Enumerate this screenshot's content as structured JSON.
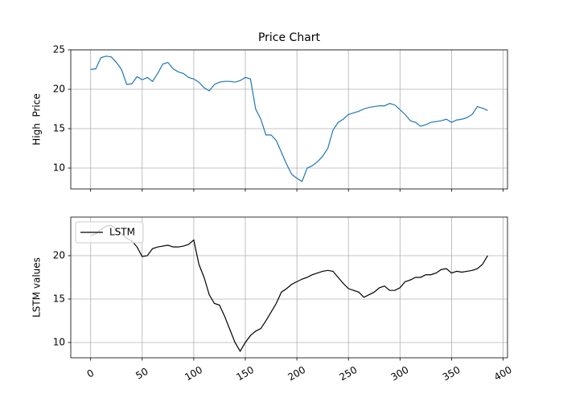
{
  "chart_data": [
    {
      "type": "line",
      "title": "Price Chart",
      "ylabel": "High  Price",
      "grid": true,
      "show_xtick_labels": false,
      "x": [
        0,
        5,
        10,
        15,
        20,
        25,
        30,
        35,
        40,
        45,
        50,
        55,
        60,
        65,
        70,
        75,
        80,
        85,
        90,
        95,
        100,
        105,
        110,
        115,
        120,
        125,
        130,
        135,
        140,
        145,
        150,
        155,
        160,
        165,
        170,
        175,
        180,
        185,
        190,
        195,
        200,
        205,
        210,
        215,
        220,
        225,
        230,
        235,
        240,
        245,
        250,
        255,
        260,
        265,
        270,
        275,
        280,
        285,
        290,
        295,
        300,
        305,
        310,
        315,
        320,
        325,
        330,
        335,
        340,
        345,
        350,
        355,
        360,
        365,
        370,
        375,
        380,
        385
      ],
      "series": [
        {
          "color": "#1f77b4",
          "values": [
            22.5,
            22.6,
            24.0,
            24.2,
            24.1,
            23.4,
            22.5,
            20.6,
            20.7,
            21.6,
            21.2,
            21.5,
            21.0,
            22.0,
            23.2,
            23.4,
            22.6,
            22.2,
            22.0,
            21.5,
            21.3,
            20.9,
            20.2,
            19.8,
            20.6,
            20.9,
            21.0,
            21.0,
            20.9,
            21.1,
            21.5,
            21.3,
            17.5,
            16.2,
            14.2,
            14.2,
            13.5,
            12.0,
            10.5,
            9.2,
            8.7,
            8.3,
            10.0,
            10.3,
            10.8,
            11.5,
            12.5,
            14.8,
            15.8,
            16.2,
            16.8,
            17.0,
            17.2,
            17.5,
            17.7,
            17.8,
            17.9,
            17.9,
            18.2,
            18.0,
            17.4,
            16.8,
            16.0,
            15.8,
            15.3,
            15.5,
            15.8,
            15.9,
            16.0,
            16.2,
            15.8,
            16.1,
            16.2,
            16.4,
            16.8,
            17.8,
            17.6,
            17.3
          ]
        }
      ],
      "xlim": [
        -19.25,
        404.25
      ],
      "xticks": [
        0,
        50,
        100,
        150,
        200,
        250,
        300,
        350,
        400
      ],
      "ylim": [
        7.35,
        25.0
      ],
      "yticks": [
        10,
        15,
        20,
        25
      ]
    },
    {
      "type": "line",
      "ylabel": "LSTM values",
      "grid": true,
      "show_xtick_labels": true,
      "legend": "upper left",
      "x": [
        0,
        5,
        10,
        15,
        20,
        25,
        30,
        35,
        40,
        45,
        50,
        55,
        60,
        65,
        70,
        75,
        80,
        85,
        90,
        95,
        100,
        105,
        110,
        115,
        120,
        125,
        130,
        135,
        140,
        145,
        150,
        155,
        160,
        165,
        170,
        175,
        180,
        185,
        190,
        195,
        200,
        205,
        210,
        215,
        220,
        225,
        230,
        235,
        240,
        245,
        250,
        255,
        260,
        265,
        270,
        275,
        280,
        285,
        290,
        295,
        300,
        305,
        310,
        315,
        320,
        325,
        330,
        335,
        340,
        345,
        350,
        355,
        360,
        365,
        370,
        375,
        380,
        385
      ],
      "series": [
        {
          "name": "LSTM",
          "color": "#000000",
          "values": [
            22.3,
            22.5,
            23.0,
            23.4,
            23.5,
            23.0,
            22.5,
            22.0,
            21.7,
            21.0,
            19.9,
            20.0,
            20.8,
            21.0,
            21.1,
            21.2,
            21.0,
            21.0,
            21.1,
            21.3,
            21.8,
            19.0,
            17.5,
            15.5,
            14.5,
            14.3,
            13.0,
            11.5,
            10.0,
            9.0,
            10.0,
            10.8,
            11.3,
            11.6,
            12.5,
            13.5,
            14.5,
            15.8,
            16.2,
            16.7,
            17.0,
            17.3,
            17.5,
            17.8,
            18.0,
            18.2,
            18.3,
            18.2,
            17.5,
            16.8,
            16.2,
            16.0,
            15.8,
            15.2,
            15.5,
            15.8,
            16.3,
            16.5,
            16.0,
            16.0,
            16.3,
            17.0,
            17.2,
            17.5,
            17.5,
            17.8,
            17.8,
            18.0,
            18.4,
            18.5,
            18.0,
            18.2,
            18.1,
            18.2,
            18.3,
            18.5,
            19.0,
            20.0
          ]
        }
      ],
      "xlim": [
        -19.25,
        404.25
      ],
      "xticks": [
        0,
        50,
        100,
        150,
        200,
        250,
        300,
        350,
        400
      ],
      "ylim": [
        8.24,
        24.44
      ],
      "yticks": [
        10,
        15,
        20
      ]
    }
  ]
}
